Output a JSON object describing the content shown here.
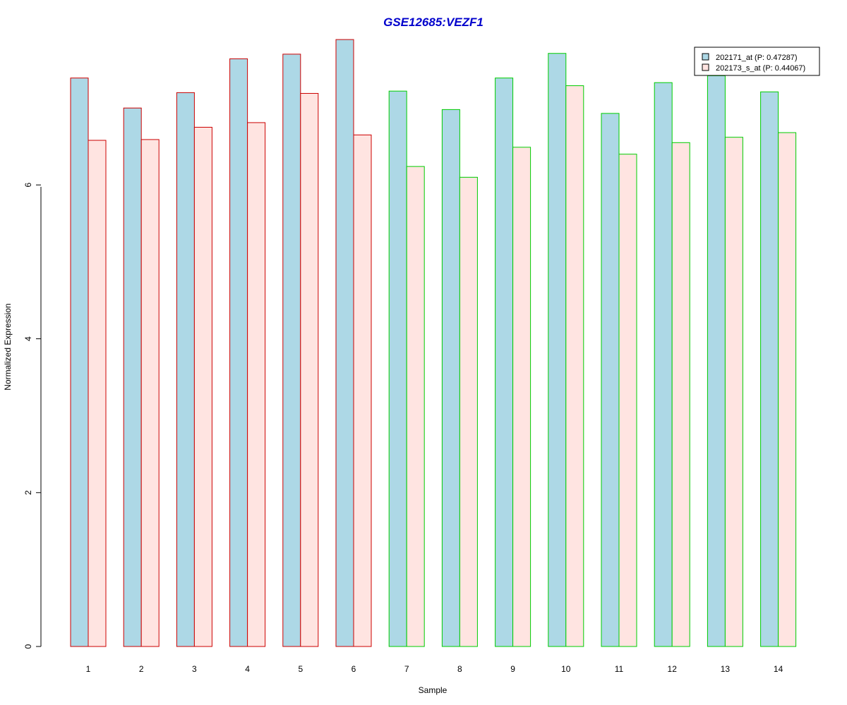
{
  "chart_data": {
    "type": "bar",
    "title": "GSE12685:VEZF1",
    "xlabel": "Sample",
    "ylabel": "Normalized Expression",
    "ylim": [
      0,
      7.9
    ],
    "yticks": [
      0,
      2,
      4,
      6
    ],
    "categories": [
      "1",
      "2",
      "3",
      "4",
      "5",
      "6",
      "7",
      "8",
      "9",
      "10",
      "11",
      "12",
      "13",
      "14"
    ],
    "group_border_colors": [
      "#cc0000",
      "#cc0000",
      "#cc0000",
      "#cc0000",
      "#cc0000",
      "#cc0000",
      "#00cc00",
      "#00cc00",
      "#00cc00",
      "#00cc00",
      "#00cc00",
      "#00cc00",
      "#00cc00",
      "#00cc00"
    ],
    "series": [
      {
        "name": "202171_at (P: 0.47287)",
        "color": "#add8e6",
        "values": [
          7.39,
          7.0,
          7.2,
          7.64,
          7.7,
          7.89,
          7.22,
          6.98,
          7.39,
          7.71,
          6.93,
          7.33,
          7.42,
          7.21
        ]
      },
      {
        "name": "202173_s_at (P: 0.44067)",
        "color": "#ffe4e1",
        "values": [
          6.58,
          6.59,
          6.75,
          6.81,
          7.19,
          6.65,
          6.24,
          6.1,
          6.49,
          7.29,
          6.4,
          6.55,
          6.62,
          6.68
        ]
      }
    ],
    "legend_position": "top-right",
    "grid": false
  }
}
